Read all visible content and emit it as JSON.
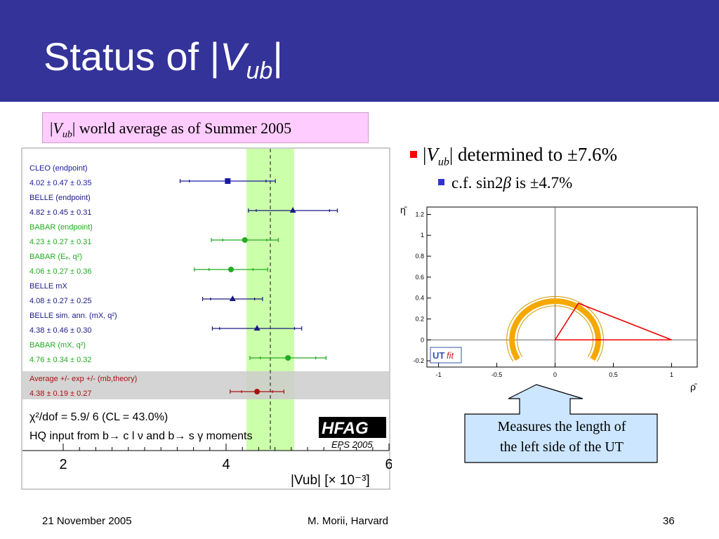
{
  "slide": {
    "title_prefix": "Status of |",
    "title_v": "V",
    "title_sub": "ub",
    "title_suffix": "|",
    "caption": {
      "bar1": "|",
      "v": "V",
      "sub": "ub",
      "rest": "| world average as of Summer 2005"
    },
    "bullet1": {
      "bar1": "|",
      "v": "V",
      "sub": "ub",
      "rest": "| determined to ±7.6%"
    },
    "bullet2": {
      "pre": "c.f. sin2",
      "beta": "β",
      "rest": " is ±4.7%"
    },
    "callout": {
      "line1": "Measures the length of",
      "line2": "the left side of the UT"
    },
    "footer": {
      "date": "21 November 2005",
      "author": "M. Morii, Harvard",
      "page": "36"
    }
  },
  "colors": {
    "title_bar": "#333399",
    "caption_bg": "#ffccff",
    "band": "#ccffaa",
    "callout_bg": "#cce6ff",
    "ring": "#f5a800",
    "triangle": "#ee0000"
  },
  "hfag": {
    "measurements": [
      {
        "name": "CLEO (endpoint)",
        "value_text": "4.02 ± 0.47 ± 0.35",
        "central": 4.02,
        "exp": 0.47,
        "total": 0.585,
        "color": "#1a1aa0",
        "marker": "square"
      },
      {
        "name": "BELLE (endpoint)",
        "value_text": "4.82 ± 0.45 ± 0.31",
        "central": 4.82,
        "exp": 0.45,
        "total": 0.546,
        "color": "#1a1a80",
        "marker": "triangle"
      },
      {
        "name": "BABAR (endpoint)",
        "value_text": "4.23 ± 0.27 ± 0.31",
        "central": 4.23,
        "exp": 0.27,
        "total": 0.411,
        "color": "#22aa22",
        "marker": "circle"
      },
      {
        "name": "BABAR (Eₑ, q²)",
        "value_text": "4.06 ± 0.27 ± 0.36",
        "central": 4.06,
        "exp": 0.27,
        "total": 0.45,
        "color": "#22aa22",
        "marker": "circle"
      },
      {
        "name": "BELLE mX",
        "value_text": "4.08 ± 0.27 ± 0.25",
        "central": 4.08,
        "exp": 0.27,
        "total": 0.368,
        "color": "#1a1a80",
        "marker": "triangle"
      },
      {
        "name": "BELLE  sim. ann. (mX, q²)",
        "value_text": "4.38 ± 0.46 ± 0.30",
        "central": 4.38,
        "exp": 0.46,
        "total": 0.549,
        "color": "#1a1a80",
        "marker": "triangle"
      },
      {
        "name": "BABAR (mX, q²)",
        "value_text": "4.76 ± 0.34 ± 0.32",
        "central": 4.76,
        "exp": 0.34,
        "total": 0.467,
        "color": "#22aa22",
        "marker": "circle"
      }
    ],
    "average": {
      "name": "Average +/- exp +/- (mb,theory)",
      "value_text": "4.38 ± 0.19 ± 0.27",
      "central": 4.38,
      "exp": 0.19,
      "total": 0.33,
      "color": "#aa1111"
    },
    "chi2_text": "χ²/dof = 5.9/ 6 (CL = 43.0%)",
    "hq_text": "HQ input from b→ c l ν and b→ s γ moments",
    "logo": "HFAG",
    "logo_sub": "EPS 2005",
    "x_ticks": [
      "2",
      "4",
      "6"
    ],
    "x_range": [
      1.5,
      6.0
    ],
    "x_label": "|Vub|  [× 10⁻³]"
  },
  "utfit": {
    "x_ticks": [
      "-1",
      "-0.5",
      "0",
      "0.5",
      "1"
    ],
    "y_ticks": [
      "-0.2",
      "0",
      "0.2",
      "0.4",
      "0.6",
      "0.8",
      "1",
      "1.2"
    ],
    "x_label": "ρ̄",
    "y_label": "η̄",
    "logo": "UT",
    "logo_italic": "fit",
    "x_range": [
      -1.1,
      1.22
    ],
    "y_range": [
      -0.26,
      1.27
    ],
    "ring_radius": 0.37,
    "apex": [
      0.2,
      0.35
    ]
  }
}
